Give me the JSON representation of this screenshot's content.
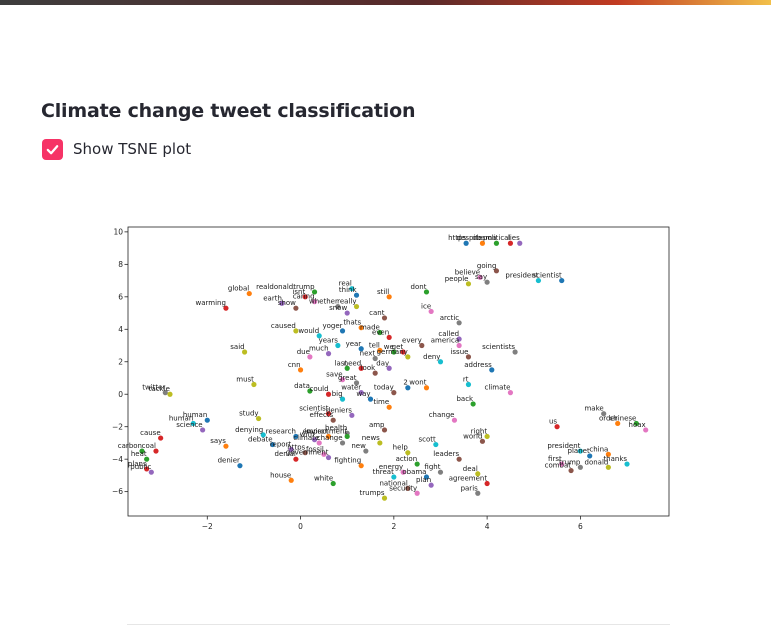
{
  "header": {
    "accent_gradient": [
      "#3d3d3d",
      "#c23b22",
      "#f2c04a"
    ]
  },
  "app": {
    "title": "Climate change tweet classification"
  },
  "controls": {
    "tsne_checkbox": {
      "label": "Show TSNE plot",
      "checked": true,
      "color": "#f63366"
    }
  },
  "chart_data": {
    "type": "scatter",
    "title": "",
    "xlabel": "",
    "ylabel": "",
    "xlim": [
      -3.7,
      7.9
    ],
    "ylim": [
      -7.5,
      10.3
    ],
    "xticks": [
      -2,
      0,
      2,
      4,
      6
    ],
    "yticks": [
      -6,
      -4,
      -2,
      0,
      2,
      4,
      6,
      8,
      10
    ],
    "grid": false,
    "palette": [
      "#1f77b4",
      "#ff7f0e",
      "#2ca02c",
      "#d62728",
      "#9467bd",
      "#8c564b",
      "#e377c2",
      "#7f7f7f",
      "#bcbd22",
      "#17becf"
    ],
    "points": [
      {
        "word": "https",
        "x": 3.55,
        "y": 9.3
      },
      {
        "word": "despite",
        "x": 3.9,
        "y": 9.3
      },
      {
        "word": "obama",
        "x": 4.2,
        "y": 9.3
      },
      {
        "word": "political",
        "x": 4.5,
        "y": 9.3
      },
      {
        "word": "lies",
        "x": 4.7,
        "y": 9.3
      },
      {
        "word": "going",
        "x": 4.2,
        "y": 7.6
      },
      {
        "word": "believe",
        "x": 3.85,
        "y": 7.2
      },
      {
        "word": "say",
        "x": 4.0,
        "y": 6.9
      },
      {
        "word": "people",
        "x": 3.6,
        "y": 6.8
      },
      {
        "word": "president",
        "x": 5.1,
        "y": 7.0
      },
      {
        "word": "scientist",
        "x": 5.6,
        "y": 7.0
      },
      {
        "word": "global",
        "x": -1.1,
        "y": 6.2
      },
      {
        "word": "realdonaldtrump",
        "x": 0.3,
        "y": 6.3
      },
      {
        "word": "isnt",
        "x": 0.1,
        "y": 6.0
      },
      {
        "word": "earth",
        "x": -0.4,
        "y": 5.6
      },
      {
        "word": "show",
        "x": -0.1,
        "y": 5.3
      },
      {
        "word": "caring",
        "x": 0.3,
        "y": 5.7
      },
      {
        "word": "whether",
        "x": 0.8,
        "y": 5.4
      },
      {
        "word": "really",
        "x": 1.2,
        "y": 5.4
      },
      {
        "word": "real",
        "x": 1.1,
        "y": 6.5
      },
      {
        "word": "think",
        "x": 1.2,
        "y": 6.1
      },
      {
        "word": "still",
        "x": 1.9,
        "y": 6.0
      },
      {
        "word": "dont",
        "x": 2.7,
        "y": 6.3
      },
      {
        "word": "warming",
        "x": -1.6,
        "y": 5.3
      },
      {
        "word": "snow",
        "x": 1.0,
        "y": 5.0
      },
      {
        "word": "cant",
        "x": 1.8,
        "y": 4.7
      },
      {
        "word": "ice",
        "x": 2.8,
        "y": 5.1
      },
      {
        "word": "arctic",
        "x": 3.4,
        "y": 4.4
      },
      {
        "word": "caused",
        "x": -0.1,
        "y": 3.9
      },
      {
        "word": "would",
        "x": 0.4,
        "y": 3.6
      },
      {
        "word": "yoger",
        "x": 0.9,
        "y": 3.9
      },
      {
        "word": "thats",
        "x": 1.3,
        "y": 4.1
      },
      {
        "word": "made",
        "x": 1.7,
        "y": 3.8
      },
      {
        "word": "even",
        "x": 1.9,
        "y": 3.5
      },
      {
        "word": "called",
        "x": 3.4,
        "y": 3.4
      },
      {
        "word": "every",
        "x": 2.6,
        "y": 3.0
      },
      {
        "word": "america",
        "x": 3.4,
        "y": 3.0
      },
      {
        "word": "scientists",
        "x": 4.6,
        "y": 2.6
      },
      {
        "word": "said",
        "x": -1.2,
        "y": 2.6
      },
      {
        "word": "years",
        "x": 0.8,
        "y": 3.0
      },
      {
        "word": "year",
        "x": 1.3,
        "y": 2.8
      },
      {
        "word": "tell",
        "x": 1.7,
        "y": 2.7
      },
      {
        "word": "we",
        "x": 2.0,
        "y": 2.6
      },
      {
        "word": "get",
        "x": 2.2,
        "y": 2.6
      },
      {
        "word": "much",
        "x": 0.6,
        "y": 2.5
      },
      {
        "word": "issue",
        "x": 3.6,
        "y": 2.3
      },
      {
        "word": "due",
        "x": 0.2,
        "y": 2.3
      },
      {
        "word": "next",
        "x": 1.6,
        "y": 2.2
      },
      {
        "word": "germany",
        "x": 2.3,
        "y": 2.3
      },
      {
        "word": "deny",
        "x": 3.0,
        "y": 2.0
      },
      {
        "word": "address",
        "x": 4.1,
        "y": 1.5
      },
      {
        "word": "cnn",
        "x": 0.0,
        "y": 1.5
      },
      {
        "word": "last",
        "x": 1.0,
        "y": 1.6
      },
      {
        "word": "need",
        "x": 1.3,
        "y": 1.6
      },
      {
        "word": "day",
        "x": 1.9,
        "y": 1.6
      },
      {
        "word": "look",
        "x": 1.6,
        "y": 1.3
      },
      {
        "word": "save",
        "x": 0.9,
        "y": 0.9
      },
      {
        "word": "great",
        "x": 1.2,
        "y": 0.7
      },
      {
        "word": "must",
        "x": -1.0,
        "y": 0.6
      },
      {
        "word": "rt",
        "x": 3.6,
        "y": 0.6
      },
      {
        "word": "2",
        "x": 2.3,
        "y": 0.4
      },
      {
        "word": "wont",
        "x": 2.7,
        "y": 0.4
      },
      {
        "word": "data",
        "x": 0.2,
        "y": 0.2
      },
      {
        "word": "could",
        "x": 0.6,
        "y": 0.0
      },
      {
        "word": "water",
        "x": 1.3,
        "y": 0.1
      },
      {
        "word": "today",
        "x": 2.0,
        "y": 0.1
      },
      {
        "word": "climate",
        "x": 4.5,
        "y": 0.1
      },
      {
        "word": "twitter",
        "x": -2.9,
        "y": 0.1
      },
      {
        "word": "tackle",
        "x": -2.8,
        "y": 0.0
      },
      {
        "word": "big",
        "x": 0.9,
        "y": -0.3
      },
      {
        "word": "way",
        "x": 1.5,
        "y": -0.3
      },
      {
        "word": "time",
        "x": 1.9,
        "y": -0.8
      },
      {
        "word": "back",
        "x": 3.7,
        "y": -0.6
      },
      {
        "word": "scientist",
        "x": 0.6,
        "y": -1.2
      },
      {
        "word": "deniers",
        "x": 1.1,
        "y": -1.3
      },
      {
        "word": "effects",
        "x": 0.7,
        "y": -1.6
      },
      {
        "word": "change",
        "x": 3.3,
        "y": -1.6
      },
      {
        "word": "make",
        "x": 6.5,
        "y": -1.2
      },
      {
        "word": "study",
        "x": -0.9,
        "y": -1.5
      },
      {
        "word": "human",
        "x": -2.3,
        "y": -1.8
      },
      {
        "word": "human",
        "x": -2.0,
        "y": -1.6
      },
      {
        "word": "order",
        "x": 6.8,
        "y": -1.8
      },
      {
        "word": "chinese",
        "x": 7.2,
        "y": -1.8
      },
      {
        "word": "us",
        "x": 5.5,
        "y": -2.0
      },
      {
        "word": "science",
        "x": -2.1,
        "y": -2.2
      },
      {
        "word": "amp",
        "x": 1.8,
        "y": -2.2
      },
      {
        "word": "hoax",
        "x": 7.4,
        "y": -2.2
      },
      {
        "word": "health",
        "x": 1.0,
        "y": -2.4
      },
      {
        "word": "right",
        "x": 4.0,
        "y": -2.6
      },
      {
        "word": "denying",
        "x": -0.8,
        "y": -2.5
      },
      {
        "word": "research",
        "x": -0.1,
        "y": -2.6
      },
      {
        "word": "impact",
        "x": 0.6,
        "y": -2.6
      },
      {
        "word": "environment",
        "x": 1.0,
        "y": -2.6
      },
      {
        "word": "cause",
        "x": -3.0,
        "y": -2.7
      },
      {
        "word": "with",
        "x": 0.3,
        "y": -2.8
      },
      {
        "word": "world",
        "x": 3.9,
        "y": -2.9
      },
      {
        "word": "climate",
        "x": 0.4,
        "y": -3.0
      },
      {
        "word": "change",
        "x": 0.9,
        "y": -3.0
      },
      {
        "word": "news",
        "x": 1.7,
        "y": -3.0
      },
      {
        "word": "scott",
        "x": 2.9,
        "y": -3.1
      },
      {
        "word": "debate",
        "x": -0.6,
        "y": -3.1
      },
      {
        "word": "says",
        "x": -1.6,
        "y": -3.2
      },
      {
        "word": "carbon",
        "x": -3.4,
        "y": -3.5
      },
      {
        "word": "coal",
        "x": -3.1,
        "y": -3.5
      },
      {
        "word": "report",
        "x": -0.2,
        "y": -3.4
      },
      {
        "word": "https",
        "x": 0.1,
        "y": -3.6
      },
      {
        "word": "fossil",
        "x": 0.5,
        "y": -3.7
      },
      {
        "word": "new",
        "x": 1.4,
        "y": -3.5
      },
      {
        "word": "help",
        "x": 2.3,
        "y": -3.6
      },
      {
        "word": "president",
        "x": 6.0,
        "y": -3.5
      },
      {
        "word": "planet",
        "x": 6.2,
        "y": -3.8
      },
      {
        "word": "china",
        "x": 6.6,
        "y": -3.7
      },
      {
        "word": "heat",
        "x": -3.3,
        "y": -4.0
      },
      {
        "word": "denial",
        "x": -0.1,
        "y": -4.0
      },
      {
        "word": "government",
        "x": 0.6,
        "y": -3.9
      },
      {
        "word": "leaders",
        "x": 3.4,
        "y": -4.0
      },
      {
        "word": "first",
        "x": 5.6,
        "y": -4.3
      },
      {
        "word": "trump",
        "x": 6.0,
        "y": -4.5
      },
      {
        "word": "donald",
        "x": 6.6,
        "y": -4.5
      },
      {
        "word": "thanks",
        "x": 7.0,
        "y": -4.3
      },
      {
        "word": "denier",
        "x": -1.3,
        "y": -4.4
      },
      {
        "word": "fighting",
        "x": 1.3,
        "y": -4.4
      },
      {
        "word": "action",
        "x": 2.5,
        "y": -4.3
      },
      {
        "word": "plans",
        "x": -3.3,
        "y": -4.6
      },
      {
        "word": "public",
        "x": -3.2,
        "y": -4.8
      },
      {
        "word": "combat",
        "x": 5.8,
        "y": -4.7
      },
      {
        "word": "energy",
        "x": 2.2,
        "y": -4.8
      },
      {
        "word": "fight",
        "x": 3.0,
        "y": -4.8
      },
      {
        "word": "deal",
        "x": 3.8,
        "y": -4.9
      },
      {
        "word": "threat",
        "x": 2.0,
        "y": -5.1
      },
      {
        "word": "obama",
        "x": 2.7,
        "y": -5.1
      },
      {
        "word": "house",
        "x": -0.2,
        "y": -5.3
      },
      {
        "word": "white",
        "x": 0.7,
        "y": -5.5
      },
      {
        "word": "agreement",
        "x": 4.0,
        "y": -5.5
      },
      {
        "word": "plan",
        "x": 2.8,
        "y": -5.6
      },
      {
        "word": "national",
        "x": 2.3,
        "y": -5.8
      },
      {
        "word": "security",
        "x": 2.5,
        "y": -6.1
      },
      {
        "word": "paris",
        "x": 3.8,
        "y": -6.1
      },
      {
        "word": "trumps",
        "x": 1.8,
        "y": -6.4
      }
    ]
  }
}
